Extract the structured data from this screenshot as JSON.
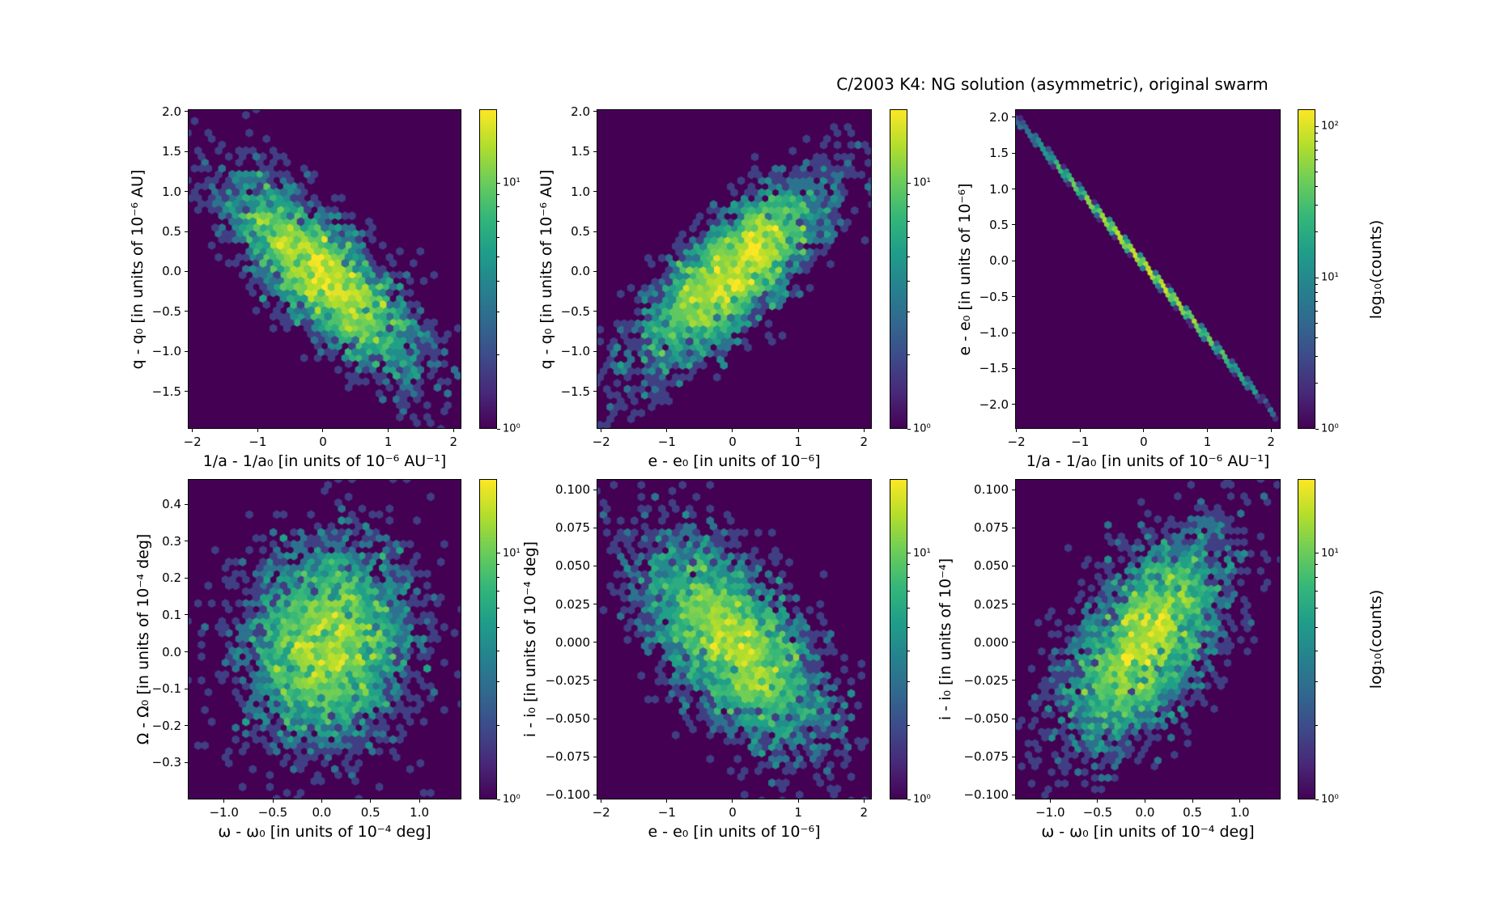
{
  "title": "C/2003 K4:  NG solution (asymmetric), original swarm",
  "colors": {
    "colormap": "viridis",
    "panel_background": "#440154",
    "figure_background": "#ffffff",
    "peak_color": "#fde725"
  },
  "chart_data": [
    {
      "type": "hexbin",
      "xlabel": "1/a - 1/a₀ [in units of 10⁻⁶ AU⁻¹]",
      "ylabel": "q - q₀ [in units of 10⁻⁶ AU]",
      "xlim": [
        -2.07,
        2.12
      ],
      "ylim": [
        -1.97,
        2.03
      ],
      "xtick_values": [
        -2,
        -1,
        0,
        1,
        2
      ],
      "xtick_labels": [
        "−2",
        "−1",
        "0",
        "1",
        "2"
      ],
      "ytick_values": [
        2.0,
        1.5,
        1.0,
        0.5,
        0.0,
        -0.5,
        -1.0,
        -1.5
      ],
      "ytick_labels": [
        "2.0",
        "1.5",
        "1.0",
        "0.5",
        "0.0",
        "−0.5",
        "−1.0",
        "−1.5"
      ],
      "gridsize": 40,
      "colorbar": {
        "vmax": 20,
        "tick_values": [
          1,
          10
        ],
        "tick_labels": [
          "10⁰",
          "10¹"
        ],
        "label": ""
      },
      "distribution": {
        "kind": "gaussian",
        "n": 3500,
        "mean": [
          0,
          -0.05
        ],
        "sigma": [
          0.72,
          0.6
        ],
        "rho": -0.78
      },
      "seed": 11
    },
    {
      "type": "hexbin",
      "xlabel": "e - e₀ [in units of 10⁻⁶]",
      "ylabel": "q - q₀ [in units of 10⁻⁶ AU]",
      "xlim": [
        -2.07,
        2.12
      ],
      "ylim": [
        -1.97,
        2.03
      ],
      "xtick_values": [
        -2,
        -1,
        0,
        1,
        2
      ],
      "xtick_labels": [
        "−2",
        "−1",
        "0",
        "1",
        "2"
      ],
      "ytick_values": [
        2.0,
        1.5,
        1.0,
        0.5,
        0.0,
        -0.5,
        -1.0,
        -1.5
      ],
      "ytick_labels": [
        "2.0",
        "1.5",
        "1.0",
        "0.5",
        "0.0",
        "−0.5",
        "−1.0",
        "−1.5"
      ],
      "gridsize": 40,
      "colorbar": {
        "vmax": 20,
        "tick_values": [
          1,
          10
        ],
        "tick_labels": [
          "10⁰",
          "10¹"
        ],
        "label": ""
      },
      "distribution": {
        "kind": "gaussian",
        "n": 3500,
        "mean": [
          0,
          -0.02
        ],
        "sigma": [
          0.72,
          0.6
        ],
        "rho": 0.78
      },
      "seed": 22
    },
    {
      "type": "hexbin",
      "xlabel": "1/a - 1/a₀ [in units of 10⁻⁶ AU⁻¹]",
      "ylabel": "e - e₀ [in units of 10⁻⁶]",
      "xlim": [
        -2.02,
        2.15
      ],
      "ylim": [
        -2.34,
        2.11
      ],
      "xtick_values": [
        -2,
        -1,
        0,
        1,
        2
      ],
      "xtick_labels": [
        "−2",
        "−1",
        "0",
        "1",
        "2"
      ],
      "ytick_values": [
        2.0,
        1.5,
        1.0,
        0.5,
        0.0,
        -0.5,
        -1.0,
        -1.5,
        -2.0
      ],
      "ytick_labels": [
        "2.0",
        "1.5",
        "1.0",
        "0.5",
        "0.0",
        "−0.5",
        "−1.0",
        "−1.5",
        "−2.0"
      ],
      "gridsize": 52,
      "colorbar": {
        "vmax": 130,
        "tick_values": [
          1,
          10,
          100
        ],
        "tick_labels": [
          "10⁰",
          "10¹",
          "10²"
        ],
        "label": "log₁₀(counts)"
      },
      "distribution": {
        "kind": "diagonal",
        "n": 3000,
        "sigma": 0.78,
        "slope": -1.02,
        "intercept": -0.05,
        "width": 0.012
      },
      "seed": 33
    },
    {
      "type": "hexbin",
      "xlabel": "ω - ω₀ [in units of 10⁻⁴ deg]",
      "ylabel": "Ω - Ω₀ [in units of 10⁻⁴ deg]",
      "xlim": [
        -1.37,
        1.43
      ],
      "ylim": [
        -0.4,
        0.468
      ],
      "xtick_values": [
        -1.0,
        -0.5,
        0.0,
        0.5,
        1.0
      ],
      "xtick_labels": [
        "−1.0",
        "−0.5",
        "0.0",
        "0.5",
        "1.0"
      ],
      "ytick_values": [
        0.4,
        0.3,
        0.2,
        0.1,
        0.0,
        -0.1,
        -0.2,
        -0.3
      ],
      "ytick_labels": [
        "0.4",
        "0.3",
        "0.2",
        "0.1",
        "0.0",
        "−0.1",
        "−0.2",
        "−0.3"
      ],
      "gridsize": 40,
      "colorbar": {
        "vmax": 20,
        "tick_values": [
          1,
          10
        ],
        "tick_labels": [
          "10⁰",
          "10¹"
        ],
        "label": ""
      },
      "distribution": {
        "kind": "gaussian",
        "n": 4000,
        "mean": [
          0.05,
          0.02
        ],
        "sigma": [
          0.42,
          0.135
        ],
        "rho": 0.06
      },
      "seed": 44
    },
    {
      "type": "hexbin",
      "xlabel": "e - e₀ [in units of 10⁻⁶]",
      "ylabel": "i - i₀ [in units of 10⁻⁴ deg]",
      "xlim": [
        -2.07,
        2.12
      ],
      "ylim": [
        -0.103,
        0.107
      ],
      "xtick_values": [
        -2,
        -1,
        0,
        1,
        2
      ],
      "xtick_labels": [
        "−2",
        "−1",
        "0",
        "1",
        "2"
      ],
      "ytick_values": [
        0.1,
        0.075,
        0.05,
        0.025,
        0.0,
        -0.025,
        -0.05,
        -0.075,
        -0.1
      ],
      "ytick_labels": [
        "0.100",
        "0.075",
        "0.050",
        "0.025",
        "0.000",
        "−0.025",
        "−0.050",
        "−0.075",
        "−0.100"
      ],
      "gridsize": 40,
      "colorbar": {
        "vmax": 20,
        "tick_values": [
          1,
          10
        ],
        "tick_labels": [
          "10⁰",
          "10¹"
        ],
        "label": ""
      },
      "distribution": {
        "kind": "gaussian",
        "n": 3800,
        "mean": [
          0,
          0
        ],
        "sigma": [
          0.7,
          0.034
        ],
        "rho": -0.62
      },
      "seed": 55
    },
    {
      "type": "hexbin",
      "xlabel": "ω - ω₀ [in units of 10⁻⁴ deg]",
      "ylabel": "i - i₀ [in units of 10⁻⁴]",
      "xlim": [
        -1.37,
        1.43
      ],
      "ylim": [
        -0.103,
        0.107
      ],
      "xtick_values": [
        -1.0,
        -0.5,
        0.0,
        0.5,
        1.0
      ],
      "xtick_labels": [
        "−1.0",
        "−0.5",
        "0.0",
        "0.5",
        "1.0"
      ],
      "ytick_values": [
        0.1,
        0.075,
        0.05,
        0.025,
        0.0,
        -0.025,
        -0.05,
        -0.075,
        -0.1
      ],
      "ytick_labels": [
        "0.100",
        "0.075",
        "0.050",
        "0.025",
        "0.000",
        "−0.025",
        "−0.050",
        "−0.075",
        "−0.100"
      ],
      "gridsize": 40,
      "colorbar": {
        "vmax": 20,
        "tick_values": [
          1,
          10
        ],
        "tick_labels": [
          "10⁰",
          "10¹"
        ],
        "label": "log₁₀(counts)"
      },
      "distribution": {
        "kind": "gaussian",
        "n": 3800,
        "mean": [
          0,
          0
        ],
        "sigma": [
          0.42,
          0.034
        ],
        "rho": 0.58
      },
      "seed": 66
    }
  ]
}
